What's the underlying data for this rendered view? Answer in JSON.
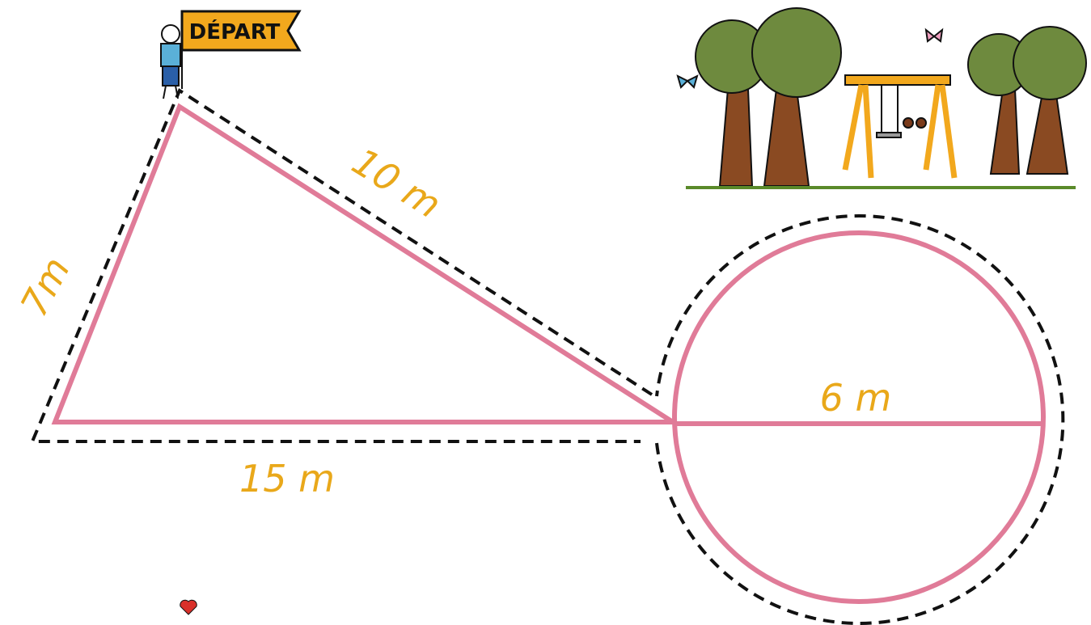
{
  "flag": {
    "label": "DÉPART"
  },
  "measures": {
    "left_side": "7m",
    "top_side": "10 m",
    "bottom_side": "15 m",
    "diameter": "6 m"
  }
}
